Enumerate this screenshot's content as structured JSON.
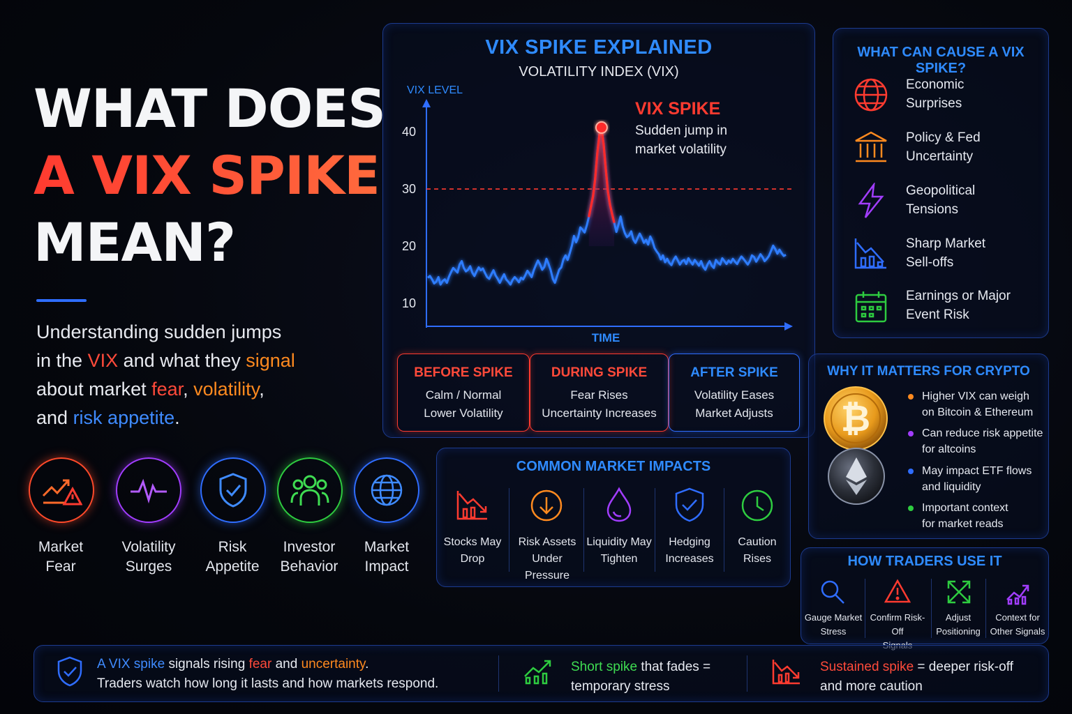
{
  "headline": {
    "line1": "WHAT DOES",
    "line2": "A VIX SPIKE",
    "line3": "MEAN?"
  },
  "subtitle": {
    "p1": "Understanding sudden jumps",
    "p2": "in the ",
    "p3": "VIX",
    "p4": " and what they ",
    "p5": "signal",
    "p6": "about market ",
    "p7": "fear",
    "p8": ", ",
    "p9": "volatility",
    "p10": ",",
    "p11": "and ",
    "p12": "risk appetite",
    "p13": "."
  },
  "concepts": [
    {
      "l1": "Market",
      "l2": "Fear",
      "icon": "trend-warning-icon",
      "color": "#ff4a2a"
    },
    {
      "l1": "Volatility",
      "l2": "Surges",
      "icon": "pulse-icon",
      "color": "#a23dff"
    },
    {
      "l1": "Risk",
      "l2": "Appetite",
      "icon": "shield-check-icon",
      "color": "#2f6dff"
    },
    {
      "l1": "Investor",
      "l2": "Behavior",
      "icon": "people-icon",
      "color": "#2ecc40"
    },
    {
      "l1": "Market",
      "l2": "Impact",
      "icon": "globe-icon",
      "color": "#2f6dff"
    }
  ],
  "chart": {
    "title": "VIX SPIKE EXPLAINED",
    "subtitle": "VOLATILITY INDEX (VIX)"
  },
  "chart_data": {
    "type": "line",
    "ylabel": "VIX LEVEL",
    "xlabel": "TIME",
    "yticks": [
      10,
      20,
      30,
      40
    ],
    "ylim": [
      6,
      45
    ],
    "threshold": 30,
    "annotation": {
      "title": "VIX SPIKE",
      "line1": "Sudden jump in",
      "line2": "market volatility"
    },
    "series": [
      {
        "values": [
          14.5,
          14.8,
          14.2,
          13.5,
          13.8,
          14.6,
          13.3,
          13.9,
          14.2,
          13.6,
          14.7,
          15.5,
          16.2,
          15.8,
          15.4,
          16.8,
          17.4,
          16.2,
          15.6,
          15.9,
          16.5,
          15.4,
          14.8,
          15.6,
          16.3,
          15.8,
          16.1,
          15.3,
          14.6,
          14.3,
          15.1,
          15.8,
          14.9,
          14.3,
          13.6,
          14.4,
          15.1,
          14.2,
          13.8,
          13.3,
          14.1,
          14.6,
          14.2,
          13.7,
          14.5,
          14.2,
          14.9,
          15.7,
          15.2,
          14.6,
          15.8,
          16.7,
          17.5,
          16.8,
          15.9,
          16.4,
          17.8,
          16.9,
          15.8,
          14.3,
          13.6,
          14.8,
          15.9,
          16.3,
          17.7,
          18.4,
          17.6,
          18.8,
          20.1,
          21.8,
          20.7,
          21.6,
          23.3,
          22.9,
          22.4,
          23.6,
          25.1,
          26.9,
          28.8,
          31.8,
          36.2,
          39.5,
          40.5,
          37.8,
          33.5,
          29.6,
          27.2,
          25.6,
          24.1,
          22.5,
          23.8,
          25.2,
          23.4,
          22.3,
          21.6,
          21.9,
          22.6,
          21.2,
          20.6,
          21.4,
          22.2,
          21.5,
          20.6,
          21.1,
          20.3,
          21.7,
          20.9,
          19.7,
          19.1,
          18.6,
          17.7,
          18.4,
          17.2,
          17.8,
          17.1,
          16.7,
          17.6,
          18.2,
          17.5,
          16.8,
          17.4,
          17.6,
          16.9,
          17.9,
          17.3,
          16.8,
          17.6,
          17.1,
          16.6,
          17.4,
          16.4,
          15.9,
          16.8,
          17.4,
          16.6,
          16.2,
          17.6,
          17.1,
          16.8,
          17.9,
          17.4,
          16.9,
          17.5,
          17.1,
          17.8,
          17.3,
          16.9,
          17.6,
          18.2,
          17.8,
          17.3,
          16.8,
          17.4,
          18.4,
          18.1,
          17.3,
          17.9,
          18.6,
          18.1,
          17.4,
          17.8,
          18.3,
          19.2,
          20.1,
          19.5,
          18.7,
          19.4,
          18.8,
          18.3,
          18.5
        ]
      }
    ]
  },
  "phases": [
    {
      "title": "BEFORE SPIKE",
      "l1": "Calm / Normal",
      "l2": "Lower Volatility",
      "color": "#ff4a3a"
    },
    {
      "title": "DURING SPIKE",
      "l1": "Fear Rises",
      "l2": "Uncertainty Increases",
      "color": "#ff4a3a"
    },
    {
      "title": "AFTER SPIKE",
      "l1": "Volatility Eases",
      "l2": "Market Adjusts",
      "color": "#2f8bff"
    }
  ],
  "causes": {
    "title": "WHAT CAN CAUSE A VIX SPIKE?",
    "items": [
      {
        "l1": "Economic",
        "l2": "Surprises",
        "icon": "globe-icon",
        "color": "#ff3b30"
      },
      {
        "l1": "Policy & Fed",
        "l2": "Uncertainty",
        "icon": "bank-icon",
        "color": "#ff8a1f"
      },
      {
        "l1": "Geopolitical",
        "l2": "Tensions",
        "icon": "lightning-icon",
        "color": "#a23dff"
      },
      {
        "l1": "Sharp Market",
        "l2": "Sell-offs",
        "icon": "chart-down-icon",
        "color": "#2f6dff"
      },
      {
        "l1": "Earnings or Major",
        "l2": "Event Risk",
        "icon": "calendar-icon",
        "color": "#2ecc40"
      }
    ]
  },
  "crypto": {
    "title": "WHY IT MATTERS FOR CRYPTO",
    "items": [
      {
        "l1": "Higher VIX can weigh",
        "l2": "on Bitcoin & Ethereum",
        "color": "#ff8a1f"
      },
      {
        "l1": "Can reduce risk appetite",
        "l2": "for altcoins",
        "color": "#a23dff"
      },
      {
        "l1": "May impact ETF flows",
        "l2": "and liquidity",
        "color": "#2f6dff"
      },
      {
        "l1": "Important context",
        "l2": "for market reads",
        "color": "#2ecc40"
      }
    ]
  },
  "impacts": {
    "title": "COMMON MARKET IMPACTS",
    "items": [
      {
        "l1": "Stocks May",
        "l2": "Drop",
        "icon": "chart-down-icon",
        "color": "#ff3b30"
      },
      {
        "l1": "Risk Assets",
        "l2": "Under Pressure",
        "icon": "arrow-down-circle-icon",
        "color": "#ff8a1f"
      },
      {
        "l1": "Liquidity May",
        "l2": "Tighten",
        "icon": "droplet-icon",
        "color": "#a23dff"
      },
      {
        "l1": "Hedging",
        "l2": "Increases",
        "icon": "shield-check-icon",
        "color": "#2f6dff"
      },
      {
        "l1": "Caution",
        "l2": "Rises",
        "icon": "clock-icon",
        "color": "#2ecc40"
      }
    ]
  },
  "traders": {
    "title": "HOW TRADERS USE IT",
    "items": [
      {
        "l1": "Gauge Market",
        "l2": "Stress",
        "icon": "search-icon",
        "color": "#2f6dff"
      },
      {
        "l1": "Confirm Risk-Off",
        "l2": "Signals",
        "icon": "warning-icon",
        "color": "#ff3b30"
      },
      {
        "l1": "Adjust",
        "l2": "Positioning",
        "icon": "arrows-icon",
        "color": "#2ecc40"
      },
      {
        "l1": "Context for",
        "l2": "Other Signals",
        "icon": "chart-up-icon",
        "color": "#a23dff"
      }
    ]
  },
  "footer": {
    "a1": "A ",
    "a2": "VIX spike",
    "a3": " signals rising ",
    "a4": "fear",
    "a5": " and ",
    "a6": "uncertainty",
    "a7": ".",
    "a8": "Traders watch how long it lasts and how markets respond.",
    "b1": "Short spike",
    "b2": " that fades =",
    "b3": "temporary stress",
    "c1": "Sustained spike",
    "c2": " = deeper risk-off",
    "c3": "and more caution"
  }
}
